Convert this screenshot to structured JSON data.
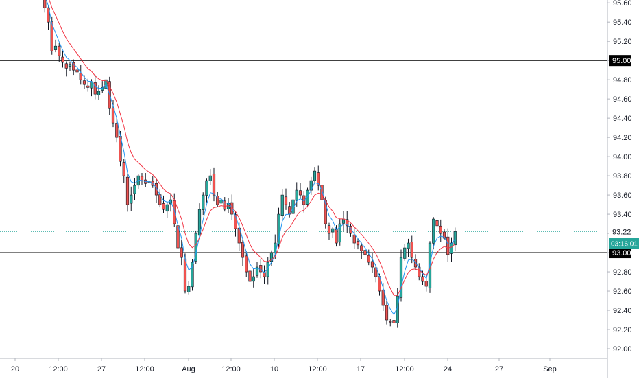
{
  "chart_data": {
    "type": "candlestick",
    "x_tick_labels": [
      "20",
      "12:00",
      "27",
      "12:00",
      "Aug",
      "12:00",
      "10",
      "12:00",
      "17",
      "12:00",
      "24",
      "27",
      "Sep"
    ],
    "y_tick_labels": [
      "92.00",
      "92.20",
      "92.40",
      "92.60",
      "92.80",
      "93.00",
      "93.20",
      "93.40",
      "93.60",
      "93.80",
      "94.00",
      "94.20",
      "94.40",
      "94.60",
      "94.80",
      "95.00",
      "95.20",
      "95.40",
      "95.60"
    ],
    "ylim": [
      91.9,
      95.63
    ],
    "horizontal_lines": [
      {
        "value": 95.0,
        "label": "95.00",
        "color": "#000000"
      },
      {
        "value": 93.0,
        "label": "93.00",
        "color": "#000000"
      }
    ],
    "last_price": {
      "value": 93.22,
      "label": "93.22",
      "countdown": "03:16:01",
      "color": "#26a69a"
    },
    "colors": {
      "up": "#26a69a",
      "down": "#ef5350",
      "ma_fast": "#2196f3",
      "ma_slow": "#f23645"
    },
    "closes": [
      95.72,
      95.55,
      95.4,
      95.1,
      95.15,
      95.05,
      94.98,
      94.92,
      94.96,
      94.9,
      94.88,
      94.8,
      94.75,
      94.72,
      94.78,
      94.65,
      94.68,
      94.72,
      94.8,
      94.5,
      94.35,
      94.2,
      93.95,
      93.8,
      93.5,
      93.6,
      93.7,
      93.8,
      93.75,
      93.72,
      93.74,
      93.7,
      93.6,
      93.5,
      93.45,
      93.5,
      93.55,
      93.3,
      93.05,
      92.95,
      92.6,
      92.65,
      92.9,
      93.2,
      93.45,
      93.6,
      93.75,
      93.8,
      93.6,
      93.5,
      93.55,
      93.45,
      93.52,
      93.4,
      93.25,
      93.1,
      92.95,
      92.8,
      92.7,
      92.75,
      92.85,
      92.8,
      92.75,
      92.9,
      93.0,
      93.1,
      93.4,
      93.6,
      93.5,
      93.4,
      93.55,
      93.65,
      93.6,
      93.5,
      93.65,
      93.75,
      93.85,
      93.7,
      93.55,
      93.3,
      93.2,
      93.25,
      93.1,
      93.3,
      93.35,
      93.28,
      93.2,
      93.1,
      93.08,
      93.02,
      92.98,
      92.9,
      92.85,
      92.75,
      92.6,
      92.45,
      92.3,
      92.28,
      92.27,
      92.55,
      92.95,
      93.05,
      93.1,
      92.95,
      92.85,
      92.75,
      92.7,
      92.65,
      93.1,
      93.35,
      93.28,
      93.2,
      93.15,
      92.98,
      93.1,
      93.22
    ]
  }
}
